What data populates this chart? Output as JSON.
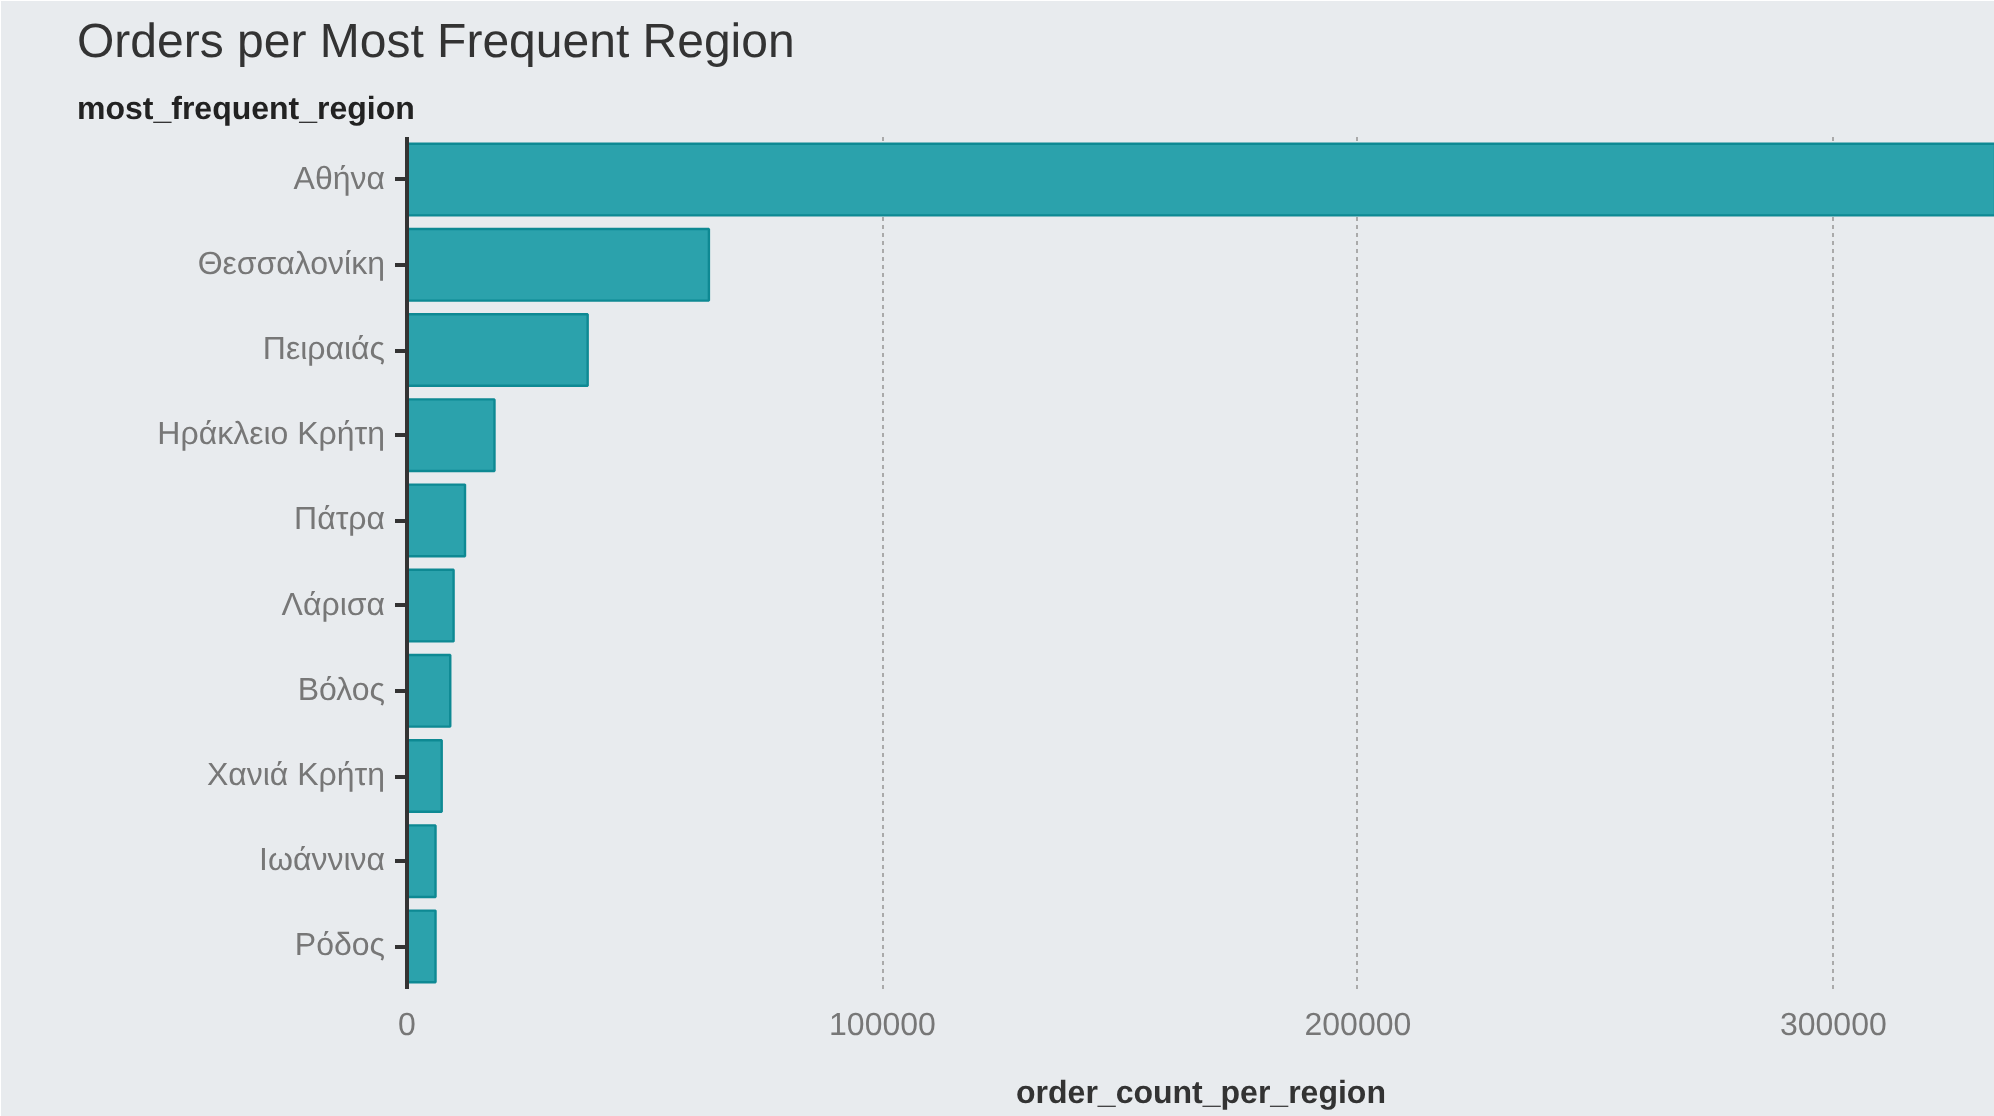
{
  "chart_data": {
    "type": "bar",
    "orientation": "horizontal",
    "title": "Orders per Most Frequent Region",
    "ylabel": "most_frequent_region",
    "xlabel": "order_count_per_region",
    "categories": [
      "Αθήνα",
      "Θεσσαλονίκη",
      "Πειραιάς",
      "Ηράκλειο Κρήτη",
      "Πάτρα",
      "Λάρισα",
      "Βόλος",
      "Χανιά Κρήτη",
      "Ιωάννινα",
      "Ρόδος"
    ],
    "values": [
      334000,
      63500,
      38000,
      18400,
      12200,
      9800,
      9100,
      7300,
      6000,
      6000
    ],
    "color": "#2ba2ac",
    "xlim": [
      0,
      334000
    ],
    "xticks": [
      0,
      100000,
      200000,
      300000
    ],
    "grid": "x"
  }
}
